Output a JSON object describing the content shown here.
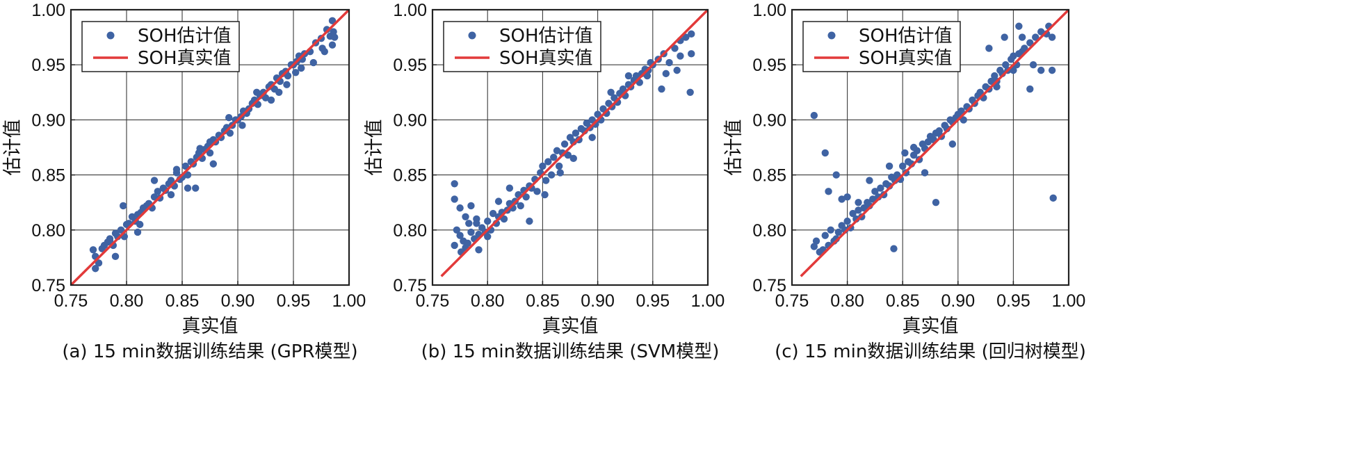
{
  "chart_data": [
    {
      "type": "scatter",
      "caption": "(a) 15 min数据训练结果 (GPR模型)",
      "xlabel": "真实值",
      "ylabel": "估计值",
      "xlim": [
        0.75,
        1.0
      ],
      "ylim": [
        0.75,
        1.0
      ],
      "xticks": [
        "0.75",
        "0.80",
        "0.85",
        "0.90",
        "0.95",
        "1.00"
      ],
      "yticks": [
        "0.75",
        "0.80",
        "0.85",
        "0.90",
        "0.95",
        "1.00"
      ],
      "grid": true,
      "legend_position": "top-left",
      "series": [
        {
          "name": "SOH估计值",
          "kind": "scatter",
          "color": "#3f63a3",
          "x": [
            0.77,
            0.772,
            0.775,
            0.778,
            0.78,
            0.783,
            0.785,
            0.788,
            0.79,
            0.792,
            0.795,
            0.798,
            0.8,
            0.802,
            0.805,
            0.808,
            0.81,
            0.813,
            0.815,
            0.818,
            0.82,
            0.823,
            0.825,
            0.828,
            0.83,
            0.833,
            0.835,
            0.838,
            0.84,
            0.843,
            0.845,
            0.848,
            0.85,
            0.853,
            0.855,
            0.858,
            0.86,
            0.863,
            0.865,
            0.868,
            0.87,
            0.873,
            0.875,
            0.878,
            0.88,
            0.883,
            0.885,
            0.888,
            0.89,
            0.893,
            0.895,
            0.898,
            0.9,
            0.903,
            0.905,
            0.908,
            0.91,
            0.913,
            0.915,
            0.918,
            0.92,
            0.923,
            0.925,
            0.928,
            0.93,
            0.933,
            0.935,
            0.938,
            0.94,
            0.943,
            0.945,
            0.948,
            0.95,
            0.953,
            0.955,
            0.958,
            0.96,
            0.965,
            0.97,
            0.975,
            0.98,
            0.983,
            0.985,
            0.987,
            0.772,
            0.785,
            0.797,
            0.812,
            0.825,
            0.84,
            0.855,
            0.866,
            0.878,
            0.892,
            0.904,
            0.917,
            0.93,
            0.944,
            0.957,
            0.968,
            0.978,
            0.985,
            0.79,
            0.81,
            0.845,
            0.862,
            0.875,
            0.937,
            0.952,
            0.976,
            0.986
          ],
          "y": [
            0.782,
            0.776,
            0.77,
            0.783,
            0.786,
            0.789,
            0.792,
            0.786,
            0.797,
            0.794,
            0.8,
            0.794,
            0.805,
            0.806,
            0.812,
            0.808,
            0.814,
            0.816,
            0.82,
            0.822,
            0.824,
            0.82,
            0.83,
            0.835,
            0.829,
            0.838,
            0.836,
            0.842,
            0.845,
            0.84,
            0.852,
            0.846,
            0.848,
            0.858,
            0.85,
            0.862,
            0.86,
            0.866,
            0.87,
            0.865,
            0.873,
            0.876,
            0.87,
            0.882,
            0.88,
            0.886,
            0.884,
            0.89,
            0.893,
            0.888,
            0.895,
            0.9,
            0.9,
            0.903,
            0.908,
            0.906,
            0.91,
            0.915,
            0.918,
            0.914,
            0.922,
            0.925,
            0.92,
            0.93,
            0.932,
            0.928,
            0.938,
            0.935,
            0.942,
            0.944,
            0.94,
            0.95,
            0.95,
            0.953,
            0.958,
            0.955,
            0.96,
            0.962,
            0.97,
            0.974,
            0.982,
            0.976,
            0.99,
            0.975,
            0.765,
            0.79,
            0.822,
            0.805,
            0.845,
            0.832,
            0.838,
            0.874,
            0.86,
            0.902,
            0.895,
            0.925,
            0.918,
            0.932,
            0.947,
            0.952,
            0.962,
            0.968,
            0.776,
            0.798,
            0.855,
            0.838,
            0.88,
            0.925,
            0.943,
            0.965,
            0.98
          ]
        },
        {
          "name": "SOH真实值",
          "kind": "line",
          "color": "#e23a3a",
          "x": [
            0.75,
            1.0
          ],
          "y": [
            0.75,
            1.0
          ]
        }
      ]
    },
    {
      "type": "scatter",
      "caption": "(b) 15 min数据训练结果 (SVM模型)",
      "xlabel": "真实值",
      "ylabel": "估计值",
      "xlim": [
        0.75,
        1.0
      ],
      "ylim": [
        0.75,
        1.0
      ],
      "xticks": [
        "0.75",
        "0.80",
        "0.85",
        "0.90",
        "0.95",
        "1.00"
      ],
      "yticks": [
        "0.75",
        "0.80",
        "0.85",
        "0.90",
        "0.95",
        "1.00"
      ],
      "grid": true,
      "legend_position": "top-left",
      "series": [
        {
          "name": "SOH估计值",
          "kind": "scatter",
          "color": "#3f63a3",
          "x": [
            0.77,
            0.772,
            0.775,
            0.778,
            0.78,
            0.783,
            0.785,
            0.788,
            0.79,
            0.792,
            0.795,
            0.798,
            0.8,
            0.803,
            0.805,
            0.808,
            0.81,
            0.813,
            0.815,
            0.818,
            0.82,
            0.823,
            0.825,
            0.828,
            0.83,
            0.833,
            0.835,
            0.838,
            0.84,
            0.843,
            0.845,
            0.848,
            0.85,
            0.853,
            0.855,
            0.858,
            0.86,
            0.863,
            0.865,
            0.868,
            0.87,
            0.873,
            0.875,
            0.878,
            0.88,
            0.883,
            0.885,
            0.888,
            0.89,
            0.893,
            0.895,
            0.898,
            0.9,
            0.903,
            0.905,
            0.908,
            0.91,
            0.913,
            0.915,
            0.918,
            0.92,
            0.923,
            0.925,
            0.928,
            0.93,
            0.933,
            0.935,
            0.938,
            0.94,
            0.943,
            0.945,
            0.948,
            0.95,
            0.955,
            0.96,
            0.965,
            0.97,
            0.975,
            0.98,
            0.985,
            0.77,
            0.775,
            0.78,
            0.785,
            0.79,
            0.77,
            0.776,
            0.782,
            0.792,
            0.8,
            0.81,
            0.82,
            0.838,
            0.852,
            0.866,
            0.878,
            0.895,
            0.912,
            0.928,
            0.946,
            0.958,
            0.972,
            0.984,
            0.985,
            0.962,
            0.975
          ],
          "y": [
            0.842,
            0.8,
            0.795,
            0.79,
            0.784,
            0.806,
            0.798,
            0.792,
            0.81,
            0.796,
            0.802,
            0.798,
            0.808,
            0.8,
            0.815,
            0.806,
            0.812,
            0.816,
            0.81,
            0.818,
            0.824,
            0.82,
            0.826,
            0.832,
            0.822,
            0.836,
            0.83,
            0.84,
            0.838,
            0.846,
            0.835,
            0.852,
            0.858,
            0.845,
            0.862,
            0.85,
            0.866,
            0.872,
            0.858,
            0.87,
            0.878,
            0.868,
            0.884,
            0.88,
            0.888,
            0.882,
            0.892,
            0.89,
            0.897,
            0.893,
            0.9,
            0.896,
            0.905,
            0.9,
            0.91,
            0.906,
            0.915,
            0.912,
            0.92,
            0.916,
            0.924,
            0.928,
            0.922,
            0.932,
            0.93,
            0.936,
            0.94,
            0.934,
            0.942,
            0.946,
            0.94,
            0.952,
            0.95,
            0.955,
            0.96,
            0.952,
            0.965,
            0.972,
            0.975,
            0.978,
            0.828,
            0.82,
            0.812,
            0.822,
            0.806,
            0.786,
            0.78,
            0.788,
            0.782,
            0.794,
            0.826,
            0.838,
            0.808,
            0.832,
            0.852,
            0.865,
            0.884,
            0.925,
            0.94,
            0.945,
            0.928,
            0.945,
            0.925,
            0.96,
            0.942,
            0.958
          ]
        },
        {
          "name": "SOH真实值",
          "kind": "line",
          "color": "#e23a3a",
          "x": [
            0.758,
            1.0
          ],
          "y": [
            0.758,
            1.0
          ]
        }
      ]
    },
    {
      "type": "scatter",
      "caption": "(c) 15 min数据训练结果 (回归树模型)",
      "xlabel": "真实值",
      "ylabel": "估计值",
      "xlim": [
        0.75,
        1.0
      ],
      "ylim": [
        0.75,
        1.0
      ],
      "xticks": [
        "0.75",
        "0.80",
        "0.85",
        "0.90",
        "0.95",
        "1.00"
      ],
      "yticks": [
        "0.75",
        "0.80",
        "0.85",
        "0.90",
        "0.95",
        "1.00"
      ],
      "grid": true,
      "legend_position": "top-left",
      "series": [
        {
          "name": "SOH估计值",
          "kind": "scatter",
          "color": "#3f63a3",
          "x": [
            0.77,
            0.772,
            0.775,
            0.778,
            0.78,
            0.783,
            0.785,
            0.788,
            0.79,
            0.792,
            0.795,
            0.798,
            0.8,
            0.803,
            0.805,
            0.808,
            0.81,
            0.813,
            0.815,
            0.818,
            0.82,
            0.823,
            0.825,
            0.828,
            0.83,
            0.833,
            0.835,
            0.838,
            0.84,
            0.843,
            0.845,
            0.848,
            0.85,
            0.853,
            0.855,
            0.858,
            0.86,
            0.863,
            0.865,
            0.868,
            0.87,
            0.873,
            0.875,
            0.878,
            0.88,
            0.883,
            0.885,
            0.888,
            0.89,
            0.893,
            0.895,
            0.898,
            0.9,
            0.903,
            0.905,
            0.908,
            0.91,
            0.913,
            0.915,
            0.918,
            0.92,
            0.923,
            0.925,
            0.928,
            0.93,
            0.933,
            0.935,
            0.938,
            0.94,
            0.943,
            0.945,
            0.948,
            0.95,
            0.953,
            0.955,
            0.958,
            0.96,
            0.965,
            0.97,
            0.975,
            0.98,
            0.985,
            0.77,
            0.78,
            0.783,
            0.79,
            0.795,
            0.8,
            0.81,
            0.82,
            0.838,
            0.842,
            0.852,
            0.86,
            0.87,
            0.88,
            0.895,
            0.928,
            0.935,
            0.942,
            0.95,
            0.958,
            0.965,
            0.975,
            0.985,
            0.986,
            0.982,
            0.968,
            0.955
          ],
          "y": [
            0.785,
            0.79,
            0.78,
            0.782,
            0.795,
            0.786,
            0.8,
            0.79,
            0.792,
            0.798,
            0.804,
            0.8,
            0.808,
            0.802,
            0.815,
            0.81,
            0.818,
            0.812,
            0.82,
            0.825,
            0.822,
            0.828,
            0.835,
            0.83,
            0.838,
            0.832,
            0.842,
            0.84,
            0.848,
            0.845,
            0.85,
            0.846,
            0.858,
            0.852,
            0.862,
            0.86,
            0.868,
            0.872,
            0.864,
            0.878,
            0.874,
            0.88,
            0.885,
            0.882,
            0.888,
            0.89,
            0.885,
            0.895,
            0.892,
            0.9,
            0.898,
            0.902,
            0.905,
            0.908,
            0.9,
            0.912,
            0.91,
            0.918,
            0.915,
            0.922,
            0.925,
            0.92,
            0.93,
            0.928,
            0.935,
            0.94,
            0.93,
            0.945,
            0.942,
            0.95,
            0.945,
            0.955,
            0.958,
            0.95,
            0.96,
            0.962,
            0.965,
            0.97,
            0.975,
            0.98,
            0.978,
            0.975,
            0.904,
            0.87,
            0.835,
            0.85,
            0.828,
            0.83,
            0.825,
            0.845,
            0.858,
            0.783,
            0.87,
            0.875,
            0.852,
            0.825,
            0.878,
            0.965,
            0.935,
            0.975,
            0.945,
            0.975,
            0.928,
            0.945,
            0.945,
            0.829,
            0.985,
            0.95,
            0.985
          ]
        },
        {
          "name": "SOH真实值",
          "kind": "line",
          "color": "#e23a3a",
          "x": [
            0.758,
            1.0
          ],
          "y": [
            0.758,
            1.0
          ]
        }
      ]
    }
  ]
}
